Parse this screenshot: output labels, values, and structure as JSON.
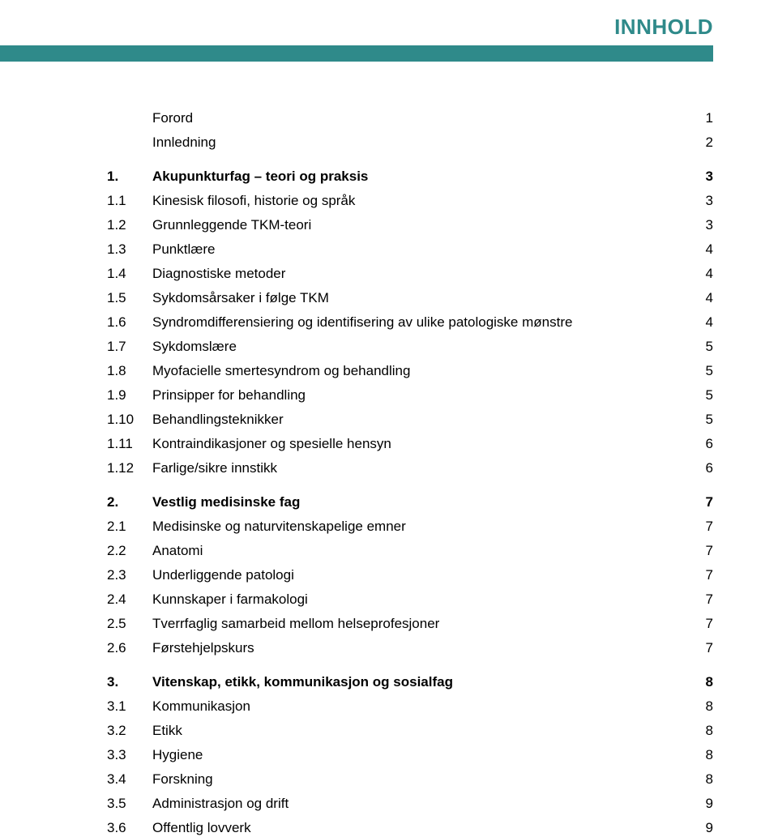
{
  "header": {
    "title": "INNHOLD",
    "title_color": "#2f8a8a",
    "bar_color": "#2f8a8a"
  },
  "intro": [
    {
      "label": "Forord",
      "page": "1"
    },
    {
      "label": "Innledning",
      "page": "2"
    }
  ],
  "sections": [
    {
      "num": "1.",
      "label": "Akupunkturfag – teori og praksis",
      "page": "3",
      "bold": true,
      "items": [
        {
          "num": "1.1",
          "label": "Kinesisk filosofi, historie og språk",
          "page": "3"
        },
        {
          "num": "1.2",
          "label": "Grunnleggende TKM-teori",
          "page": "3"
        },
        {
          "num": "1.3",
          "label": "Punktlære",
          "page": "4"
        },
        {
          "num": "1.4",
          "label": "Diagnostiske metoder",
          "page": "4"
        },
        {
          "num": "1.5",
          "label": "Sykdomsårsaker i følge TKM",
          "page": "4"
        },
        {
          "num": "1.6",
          "label": "Syndromdifferensiering og identifisering av ulike patologiske mønstre",
          "page": "4"
        },
        {
          "num": "1.7",
          "label": "Sykdomslære",
          "page": "5"
        },
        {
          "num": "1.8",
          "label": "Myofacielle smertesyndrom og behandling",
          "page": "5"
        },
        {
          "num": "1.9",
          "label": "Prinsipper for behandling",
          "page": "5"
        },
        {
          "num": "1.10",
          "label": "Behandlingsteknikker",
          "page": "5"
        },
        {
          "num": "1.11",
          "label": "Kontraindikasjoner og spesielle hensyn",
          "page": "6"
        },
        {
          "num": "1.12",
          "label": "Farlige/sikre innstikk",
          "page": "6"
        }
      ]
    },
    {
      "num": "2.",
      "label": "Vestlig medisinske fag",
      "page": "7",
      "bold": true,
      "items": [
        {
          "num": "2.1",
          "label": "Medisinske og naturvitenskapelige emner",
          "page": "7"
        },
        {
          "num": "2.2",
          "label": "Anatomi",
          "page": "7"
        },
        {
          "num": "2.3",
          "label": "Underliggende patologi",
          "page": "7"
        },
        {
          "num": "2.4",
          "label": "Kunnskaper i farmakologi",
          "page": "7"
        },
        {
          "num": "2.5",
          "label": "Tverrfaglig samarbeid mellom helseprofesjoner",
          "page": "7"
        },
        {
          "num": "2.6",
          "label": "Førstehjelpskurs",
          "page": "7"
        }
      ]
    },
    {
      "num": "3.",
      "label": "Vitenskap, etikk, kommunikasjon og sosialfag",
      "page": "8",
      "bold": true,
      "items": [
        {
          "num": "3.1",
          "label": "Kommunikasjon",
          "page": "8"
        },
        {
          "num": "3.2",
          "label": "Etikk",
          "page": "8"
        },
        {
          "num": "3.3",
          "label": "Hygiene",
          "page": "8"
        },
        {
          "num": "3.4",
          "label": "Forskning",
          "page": "8"
        },
        {
          "num": "3.5",
          "label": "Administrasjon og drift",
          "page": "9"
        },
        {
          "num": "3.6",
          "label": "Offentlig lovverk",
          "page": "9"
        }
      ]
    }
  ]
}
